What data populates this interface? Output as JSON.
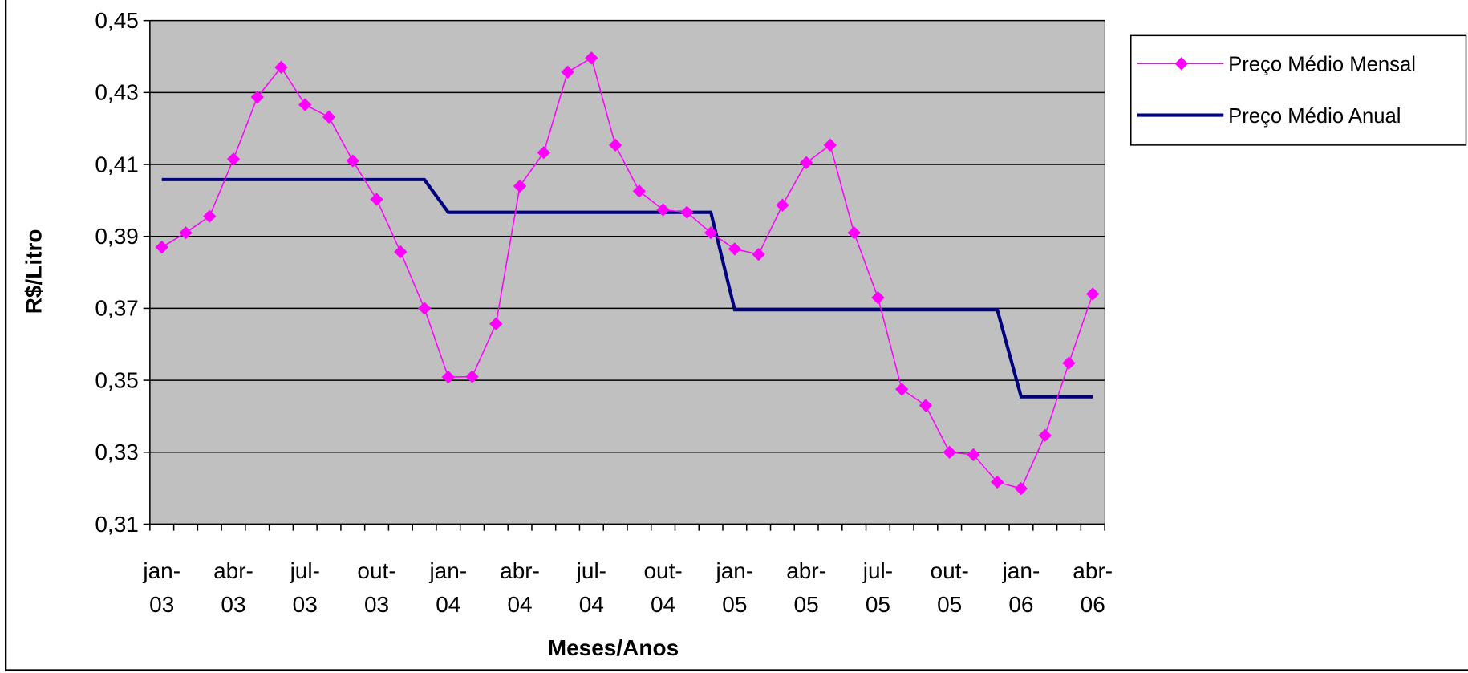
{
  "chart_data": {
    "type": "line",
    "xlabel": "Meses/Anos",
    "ylabel": "R$/Litro",
    "categories": [
      "jan-03",
      null,
      null,
      "abr-03",
      null,
      null,
      "jul-03",
      null,
      null,
      "out-03",
      null,
      null,
      "jan-04",
      null,
      null,
      "abr-04",
      null,
      null,
      "jul-04",
      null,
      null,
      "out-04",
      null,
      null,
      "jan-05",
      null,
      null,
      "abr-05",
      null,
      null,
      "jul-05",
      null,
      null,
      "out-05",
      null,
      null,
      "jan-06",
      null,
      null,
      "abr-06"
    ],
    "series": [
      {
        "name": "Preço Médio Mensal",
        "color": "#ff00ff",
        "marker": "diamond",
        "values": [
          0.387,
          0.391,
          0.3956,
          0.4115,
          0.4287,
          0.437,
          0.4266,
          0.4232,
          0.411,
          0.4003,
          0.3857,
          0.37,
          0.3509,
          0.351,
          0.3657,
          0.404,
          0.4133,
          0.4357,
          0.4396,
          0.4154,
          0.4026,
          0.3974,
          0.3967,
          0.391,
          0.3865,
          0.385,
          0.3987,
          0.4105,
          0.4154,
          0.391,
          0.373,
          0.3475,
          0.343,
          0.33,
          0.3293,
          0.3217,
          0.3199,
          0.3347,
          0.3548,
          0.374
        ]
      },
      {
        "name": "Preço Médio Anual",
        "color": "#000080",
        "values": [
          0.4058,
          0.4058,
          0.4058,
          0.4058,
          0.4058,
          0.4058,
          0.4058,
          0.4058,
          0.4058,
          0.4058,
          0.4058,
          0.4058,
          0.3967,
          0.3967,
          0.3967,
          0.3967,
          0.3967,
          0.3967,
          0.3967,
          0.3967,
          0.3967,
          0.3967,
          0.3967,
          0.3967,
          0.3696,
          0.3696,
          0.3696,
          0.3696,
          0.3696,
          0.3696,
          0.3696,
          0.3696,
          0.3696,
          0.3696,
          0.3696,
          0.3696,
          0.3454,
          0.3454,
          0.3454,
          0.3454
        ]
      }
    ],
    "ylim": [
      0.31,
      0.45
    ],
    "yticks": [
      {
        "value": 0.31,
        "label": "0,31"
      },
      {
        "value": 0.33,
        "label": "0,33"
      },
      {
        "value": 0.35,
        "label": "0,35"
      },
      {
        "value": 0.37,
        "label": "0,37"
      },
      {
        "value": 0.39,
        "label": "0,39"
      },
      {
        "value": 0.41,
        "label": "0,41"
      },
      {
        "value": 0.43,
        "label": "0,43"
      },
      {
        "value": 0.45,
        "label": "0,45"
      }
    ],
    "grid": true,
    "plot_background": "#c0c0c0",
    "legend": "right"
  }
}
